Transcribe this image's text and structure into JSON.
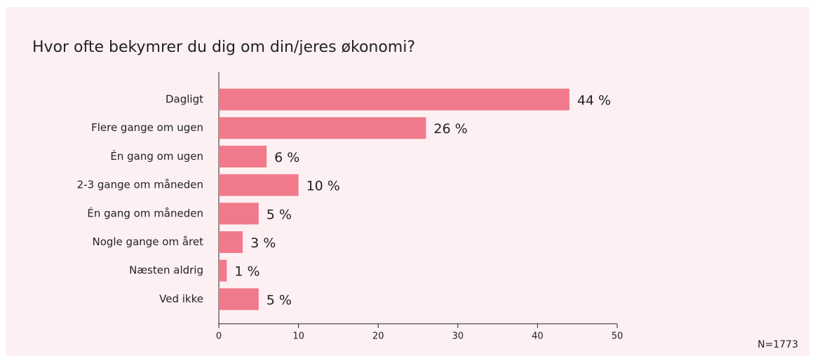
{
  "chart_data": {
    "type": "barh",
    "title": "Hvor ofte bekymrer du dig om din/jeres økonomi?",
    "categories": [
      "Dagligt",
      "Flere gange om ugen",
      "Én gang om ugen",
      "2-3 gange om måneden",
      "Én gang om måneden",
      "Nogle gange om året",
      "Næsten aldrig",
      "Ved ikke"
    ],
    "values": [
      44,
      26,
      6,
      10,
      5,
      3,
      1,
      5
    ],
    "value_labels": [
      "44 %",
      "26 %",
      "6 %",
      "10 %",
      "5 %",
      "3 %",
      "1 %",
      "5 %"
    ],
    "color": "#f07a8c",
    "xlim": [
      0,
      50
    ],
    "xticks": [
      0,
      10,
      20,
      30,
      40,
      50
    ],
    "note": "N=1773"
  }
}
